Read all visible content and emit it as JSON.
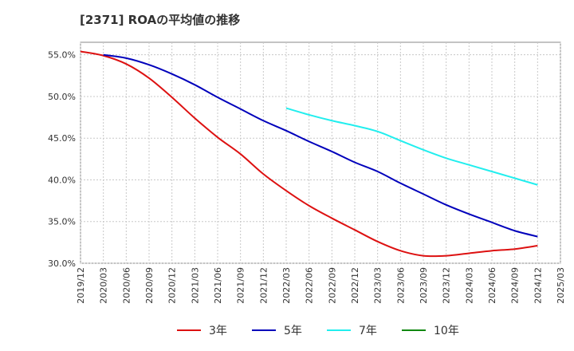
{
  "chart_data": {
    "type": "line",
    "title": "[2371]  ROAの平均値の推移",
    "y_tick_labels": [
      "55.0%",
      "50.0%",
      "45.0%",
      "40.0%",
      "35.0%",
      "30.0%"
    ],
    "y_ticks": [
      55,
      50,
      45,
      40,
      35,
      30
    ],
    "ylim": [
      30,
      56.5
    ],
    "x": [
      "2019/12",
      "2020/03",
      "2020/06",
      "2020/09",
      "2020/12",
      "2021/03",
      "2021/06",
      "2021/09",
      "2021/12",
      "2022/03",
      "2022/06",
      "2022/09",
      "2022/12",
      "2023/03",
      "2023/06",
      "2023/09",
      "2023/12",
      "2024/03",
      "2024/06",
      "2024/09",
      "2024/12",
      "2025/03"
    ],
    "grid": true,
    "legend_position": "bottom",
    "series": [
      {
        "name": "3年",
        "color": "#dd1111",
        "values": [
          55.4,
          54.9,
          53.9,
          52.2,
          49.9,
          47.4,
          45.1,
          43.1,
          40.7,
          38.7,
          36.9,
          35.4,
          34.0,
          32.6,
          31.5,
          30.9,
          30.9,
          31.2,
          31.5,
          31.7,
          32.1,
          null
        ]
      },
      {
        "name": "5年",
        "color": "#0000bb",
        "values": [
          null,
          55.0,
          54.6,
          53.8,
          52.7,
          51.4,
          49.9,
          48.5,
          47.1,
          45.9,
          44.6,
          43.4,
          42.1,
          41.0,
          39.6,
          38.3,
          37.0,
          35.9,
          34.9,
          33.9,
          33.2,
          null
        ]
      },
      {
        "name": "7年",
        "color": "#22eeee",
        "values": [
          null,
          null,
          null,
          null,
          null,
          null,
          null,
          null,
          null,
          48.6,
          47.8,
          47.1,
          46.5,
          45.8,
          44.7,
          43.6,
          42.6,
          41.8,
          41.0,
          40.2,
          39.4,
          null
        ]
      },
      {
        "name": "10年",
        "color": "#118811",
        "values": [
          null,
          null,
          null,
          null,
          null,
          null,
          null,
          null,
          null,
          null,
          null,
          null,
          null,
          null,
          null,
          null,
          null,
          null,
          null,
          null,
          null,
          null
        ]
      }
    ]
  }
}
